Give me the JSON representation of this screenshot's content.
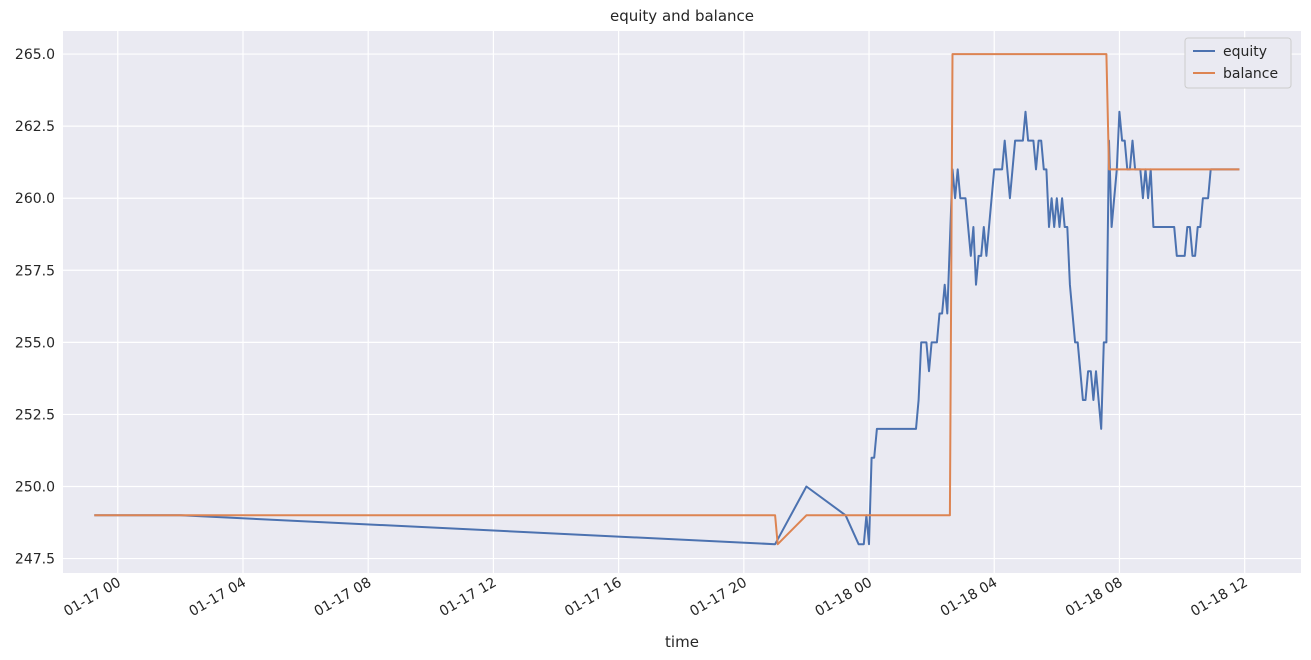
{
  "chart_data": {
    "type": "line",
    "title": "equity and balance",
    "xlabel": "time",
    "ylabel": "",
    "x_ticks": [
      "01-17 00",
      "01-17 04",
      "01-17 08",
      "01-17 12",
      "01-17 16",
      "01-17 20",
      "01-18 00",
      "01-18 04",
      "01-18 08",
      "01-18 12"
    ],
    "y_ticks": [
      "247.5",
      "250.0",
      "252.5",
      "255.0",
      "257.5",
      "260.0",
      "262.5",
      "265.0"
    ],
    "xlim": [
      "2024-01-16 22:15",
      "2024-01-18 13:48"
    ],
    "ylim": [
      247.0,
      265.8
    ],
    "grid": true,
    "legend_position": "top-right",
    "series": [
      {
        "name": "equity",
        "color": "#4c72b0",
        "points": [
          [
            "2024-01-16 23:15",
            249
          ],
          [
            "2024-01-17 02:00",
            249
          ],
          [
            "2024-01-17 21:00",
            248
          ],
          [
            "2024-01-17 22:00",
            250
          ],
          [
            "2024-01-17 23:15",
            249
          ],
          [
            "2024-01-17 23:40",
            248
          ],
          [
            "2024-01-17 23:50",
            248
          ],
          [
            "2024-01-17 23:55",
            249
          ],
          [
            "2024-01-18 00:00",
            248
          ],
          [
            "2024-01-18 00:05",
            251
          ],
          [
            "2024-01-18 00:10",
            251
          ],
          [
            "2024-01-18 00:15",
            252
          ],
          [
            "2024-01-18 01:30",
            252
          ],
          [
            "2024-01-18 01:35",
            253
          ],
          [
            "2024-01-18 01:40",
            255
          ],
          [
            "2024-01-18 01:50",
            255
          ],
          [
            "2024-01-18 01:55",
            254
          ],
          [
            "2024-01-18 02:00",
            255
          ],
          [
            "2024-01-18 02:10",
            255
          ],
          [
            "2024-01-18 02:15",
            256
          ],
          [
            "2024-01-18 02:20",
            256
          ],
          [
            "2024-01-18 02:25",
            257
          ],
          [
            "2024-01-18 02:30",
            256
          ],
          [
            "2024-01-18 02:40",
            261
          ],
          [
            "2024-01-18 02:45",
            260
          ],
          [
            "2024-01-18 02:50",
            261
          ],
          [
            "2024-01-18 02:55",
            260
          ],
          [
            "2024-01-18 03:05",
            260
          ],
          [
            "2024-01-18 03:15",
            258
          ],
          [
            "2024-01-18 03:20",
            259
          ],
          [
            "2024-01-18 03:25",
            257
          ],
          [
            "2024-01-18 03:30",
            258
          ],
          [
            "2024-01-18 03:35",
            258
          ],
          [
            "2024-01-18 03:40",
            259
          ],
          [
            "2024-01-18 03:45",
            258
          ],
          [
            "2024-01-18 03:55",
            260
          ],
          [
            "2024-01-18 04:00",
            261
          ],
          [
            "2024-01-18 04:15",
            261
          ],
          [
            "2024-01-18 04:20",
            262
          ],
          [
            "2024-01-18 04:30",
            260
          ],
          [
            "2024-01-18 04:40",
            262
          ],
          [
            "2024-01-18 04:55",
            262
          ],
          [
            "2024-01-18 05:00",
            263
          ],
          [
            "2024-01-18 05:05",
            262
          ],
          [
            "2024-01-18 05:15",
            262
          ],
          [
            "2024-01-18 05:20",
            261
          ],
          [
            "2024-01-18 05:25",
            262
          ],
          [
            "2024-01-18 05:30",
            262
          ],
          [
            "2024-01-18 05:35",
            261
          ],
          [
            "2024-01-18 05:40",
            261
          ],
          [
            "2024-01-18 05:45",
            259
          ],
          [
            "2024-01-18 05:50",
            260
          ],
          [
            "2024-01-18 05:55",
            259
          ],
          [
            "2024-01-18 06:00",
            260
          ],
          [
            "2024-01-18 06:05",
            259
          ],
          [
            "2024-01-18 06:10",
            260
          ],
          [
            "2024-01-18 06:15",
            259
          ],
          [
            "2024-01-18 06:20",
            259
          ],
          [
            "2024-01-18 06:25",
            257
          ],
          [
            "2024-01-18 06:35",
            255
          ],
          [
            "2024-01-18 06:40",
            255
          ],
          [
            "2024-01-18 06:50",
            253
          ],
          [
            "2024-01-18 06:55",
            253
          ],
          [
            "2024-01-18 07:00",
            254
          ],
          [
            "2024-01-18 07:05",
            254
          ],
          [
            "2024-01-18 07:10",
            253
          ],
          [
            "2024-01-18 07:15",
            254
          ],
          [
            "2024-01-18 07:25",
            252
          ],
          [
            "2024-01-18 07:30",
            255
          ],
          [
            "2024-01-18 07:35",
            255
          ],
          [
            "2024-01-18 07:40",
            262
          ],
          [
            "2024-01-18 07:45",
            259
          ],
          [
            "2024-01-18 07:55",
            261
          ],
          [
            "2024-01-18 08:00",
            263
          ],
          [
            "2024-01-18 08:05",
            262
          ],
          [
            "2024-01-18 08:10",
            262
          ],
          [
            "2024-01-18 08:15",
            261
          ],
          [
            "2024-01-18 08:20",
            261
          ],
          [
            "2024-01-18 08:25",
            262
          ],
          [
            "2024-01-18 08:30",
            261
          ],
          [
            "2024-01-18 08:40",
            261
          ],
          [
            "2024-01-18 08:45",
            260
          ],
          [
            "2024-01-18 08:50",
            261
          ],
          [
            "2024-01-18 08:55",
            260
          ],
          [
            "2024-01-18 09:00",
            261
          ],
          [
            "2024-01-18 09:05",
            259
          ],
          [
            "2024-01-18 09:45",
            259
          ],
          [
            "2024-01-18 09:50",
            258
          ],
          [
            "2024-01-18 10:05",
            258
          ],
          [
            "2024-01-18 10:10",
            259
          ],
          [
            "2024-01-18 10:15",
            259
          ],
          [
            "2024-01-18 10:20",
            258
          ],
          [
            "2024-01-18 10:25",
            258
          ],
          [
            "2024-01-18 10:30",
            259
          ],
          [
            "2024-01-18 10:35",
            259
          ],
          [
            "2024-01-18 10:40",
            260
          ],
          [
            "2024-01-18 10:50",
            260
          ],
          [
            "2024-01-18 10:55",
            261
          ],
          [
            "2024-01-18 11:50",
            261
          ]
        ]
      },
      {
        "name": "balance",
        "color": "#dd8452",
        "points": [
          [
            "2024-01-16 23:15",
            249
          ],
          [
            "2024-01-17 21:00",
            249
          ],
          [
            "2024-01-17 21:05",
            248
          ],
          [
            "2024-01-17 22:00",
            249
          ],
          [
            "2024-01-18 02:35",
            249
          ],
          [
            "2024-01-18 02:40",
            265
          ],
          [
            "2024-01-18 07:35",
            265
          ],
          [
            "2024-01-18 07:40",
            261
          ],
          [
            "2024-01-18 11:50",
            261
          ]
        ]
      }
    ]
  }
}
